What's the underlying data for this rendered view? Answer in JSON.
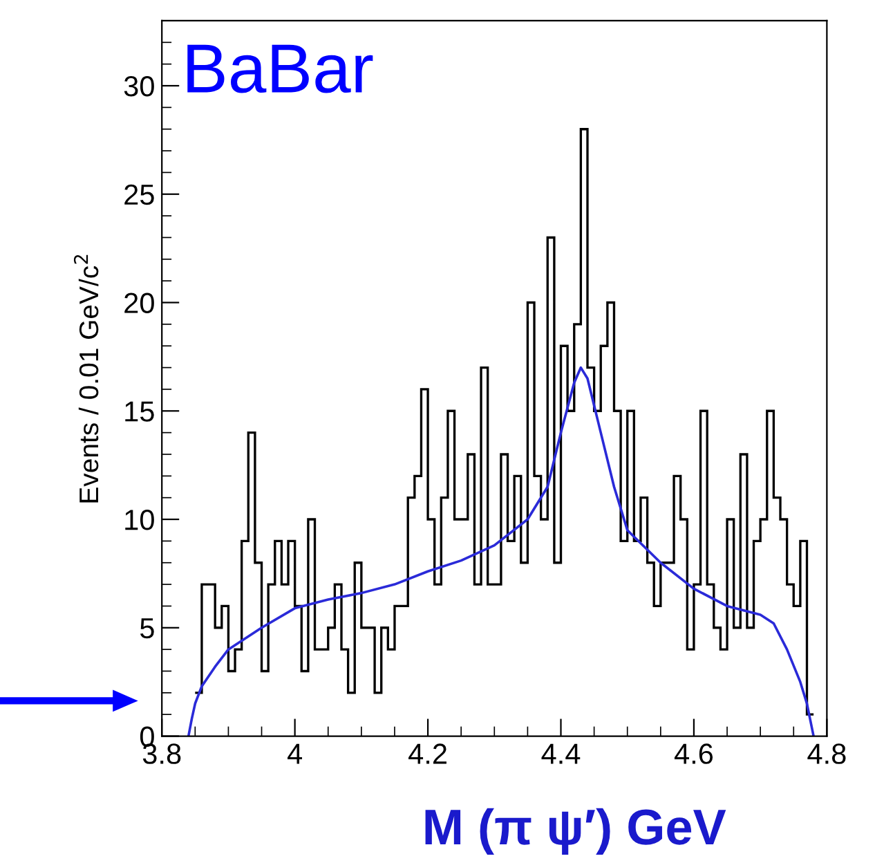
{
  "chart_data": {
    "type": "histogram",
    "xlabel": "M (π ψ′) GeV",
    "ylabel": "Events / 0.01 GeV/c$^{2}$",
    "annotations": [
      "BaBar"
    ],
    "xlim": [
      3.8,
      4.8
    ],
    "xticks": [
      3.8,
      4,
      4.2,
      4.4,
      4.6,
      4.8
    ],
    "ylim": [
      0,
      33
    ],
    "yticks": [
      0,
      5,
      10,
      15,
      20,
      25,
      30
    ],
    "grid": false,
    "series": [
      {
        "color": "#000000",
        "bins": [
          3.85,
          3.86,
          3.87,
          3.88,
          3.89,
          3.9,
          3.91,
          3.92,
          3.93,
          3.94,
          3.95,
          3.96,
          3.97,
          3.98,
          3.99,
          4.0,
          4.01,
          4.02,
          4.03,
          4.04,
          4.05,
          4.06,
          4.07,
          4.08,
          4.09,
          4.1,
          4.11,
          4.12,
          4.13,
          4.14,
          4.15,
          4.16,
          4.17,
          4.18,
          4.19,
          4.2,
          4.21,
          4.22,
          4.23,
          4.24,
          4.25,
          4.26,
          4.27,
          4.28,
          4.29,
          4.3,
          4.31,
          4.32,
          4.33,
          4.34,
          4.35,
          4.36,
          4.37,
          4.38,
          4.39,
          4.4,
          4.41,
          4.42,
          4.43,
          4.44,
          4.45,
          4.46,
          4.47,
          4.48,
          4.49,
          4.5,
          4.51,
          4.52,
          4.53,
          4.54,
          4.55,
          4.56,
          4.57,
          4.58,
          4.59,
          4.6,
          4.61,
          4.62,
          4.63,
          4.64,
          4.65,
          4.66,
          4.67,
          4.68,
          4.69,
          4.7,
          4.71,
          4.72,
          4.73,
          4.74,
          4.75,
          4.76,
          4.77,
          4.78
        ],
        "values": [
          2,
          7,
          7,
          5,
          6,
          3,
          4,
          9,
          14,
          8,
          3,
          7,
          9,
          7,
          9,
          6,
          3,
          10,
          4,
          4,
          5,
          7,
          4,
          2,
          8,
          5,
          5,
          2,
          5,
          4,
          6,
          6,
          11,
          12,
          16,
          10,
          7,
          11,
          15,
          10,
          10,
          13,
          7,
          17,
          7,
          7,
          13,
          9,
          12,
          8,
          20,
          12,
          10,
          23,
          8,
          18,
          15,
          19,
          28,
          17,
          15,
          18,
          20,
          15,
          9,
          15,
          9,
          11,
          8,
          6,
          8,
          8,
          12,
          10,
          4,
          7,
          15,
          7,
          5,
          4,
          10,
          5,
          13,
          5,
          9,
          10,
          15,
          11,
          10,
          7,
          6,
          9,
          1
        ]
      },
      {
        "type": "line",
        "color": "#2a2ad8",
        "x": [
          3.84,
          3.845,
          3.85,
          3.86,
          3.88,
          3.9,
          3.95,
          4.0,
          4.05,
          4.1,
          4.15,
          4.2,
          4.25,
          4.3,
          4.35,
          4.38,
          4.4,
          4.42,
          4.43,
          4.44,
          4.46,
          4.48,
          4.5,
          4.55,
          4.6,
          4.65,
          4.7,
          4.72,
          4.74,
          4.76,
          4.77,
          4.78
        ],
        "values": [
          0,
          0.8,
          1.5,
          2.3,
          3.2,
          4.0,
          5.0,
          5.9,
          6.3,
          6.6,
          7.0,
          7.6,
          8.1,
          8.8,
          10.0,
          11.5,
          14.0,
          16.3,
          17.0,
          16.5,
          14.0,
          11.5,
          9.5,
          8.0,
          6.8,
          6.0,
          5.6,
          5.2,
          4.0,
          2.5,
          1.5,
          0
        ]
      }
    ]
  }
}
